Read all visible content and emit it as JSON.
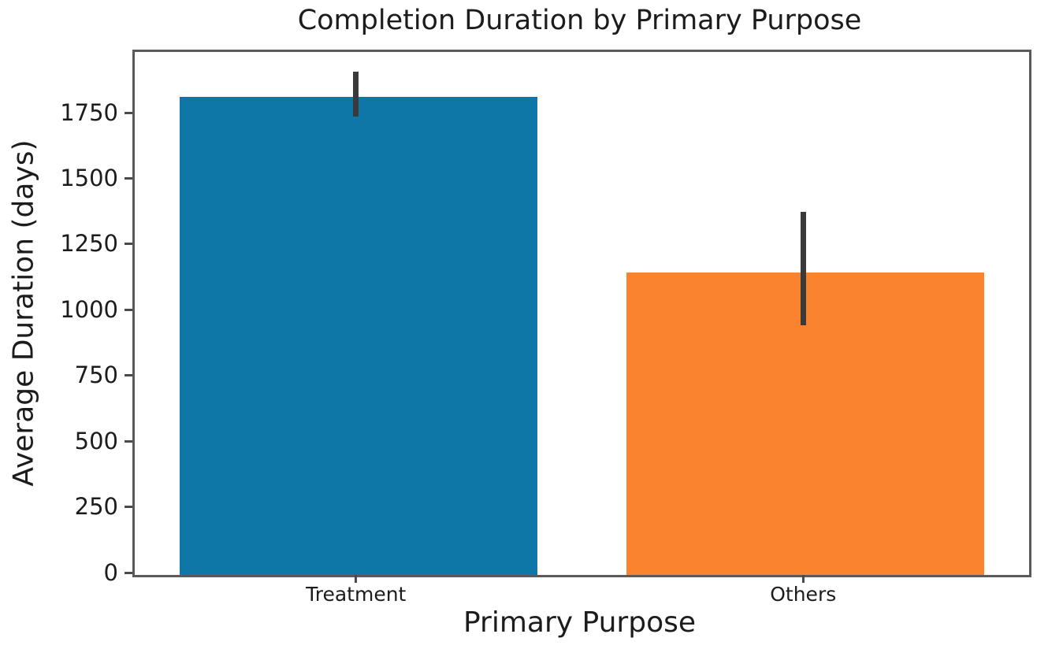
{
  "chart_data": {
    "type": "bar",
    "title": "Completion Duration by Primary Purpose",
    "xlabel": "Primary Purpose",
    "ylabel": "Average Duration (days)",
    "categories": [
      "Treatment",
      "Others"
    ],
    "values": [
      1820,
      1150
    ],
    "error_low": [
      1735,
      940
    ],
    "error_high": [
      1905,
      1372
    ],
    "bar_colors": [
      "#0f76a8",
      "#f9832e"
    ],
    "errorbar_color": "#3a3a3a",
    "yticks": [
      0,
      250,
      500,
      750,
      1000,
      1250,
      1500,
      1750
    ],
    "ylim": [
      0,
      1990
    ],
    "grid": false,
    "legend": null,
    "background_color": "#ffffff",
    "spine_color": "#5a5a5a",
    "text_color": "#1c1c1c"
  }
}
